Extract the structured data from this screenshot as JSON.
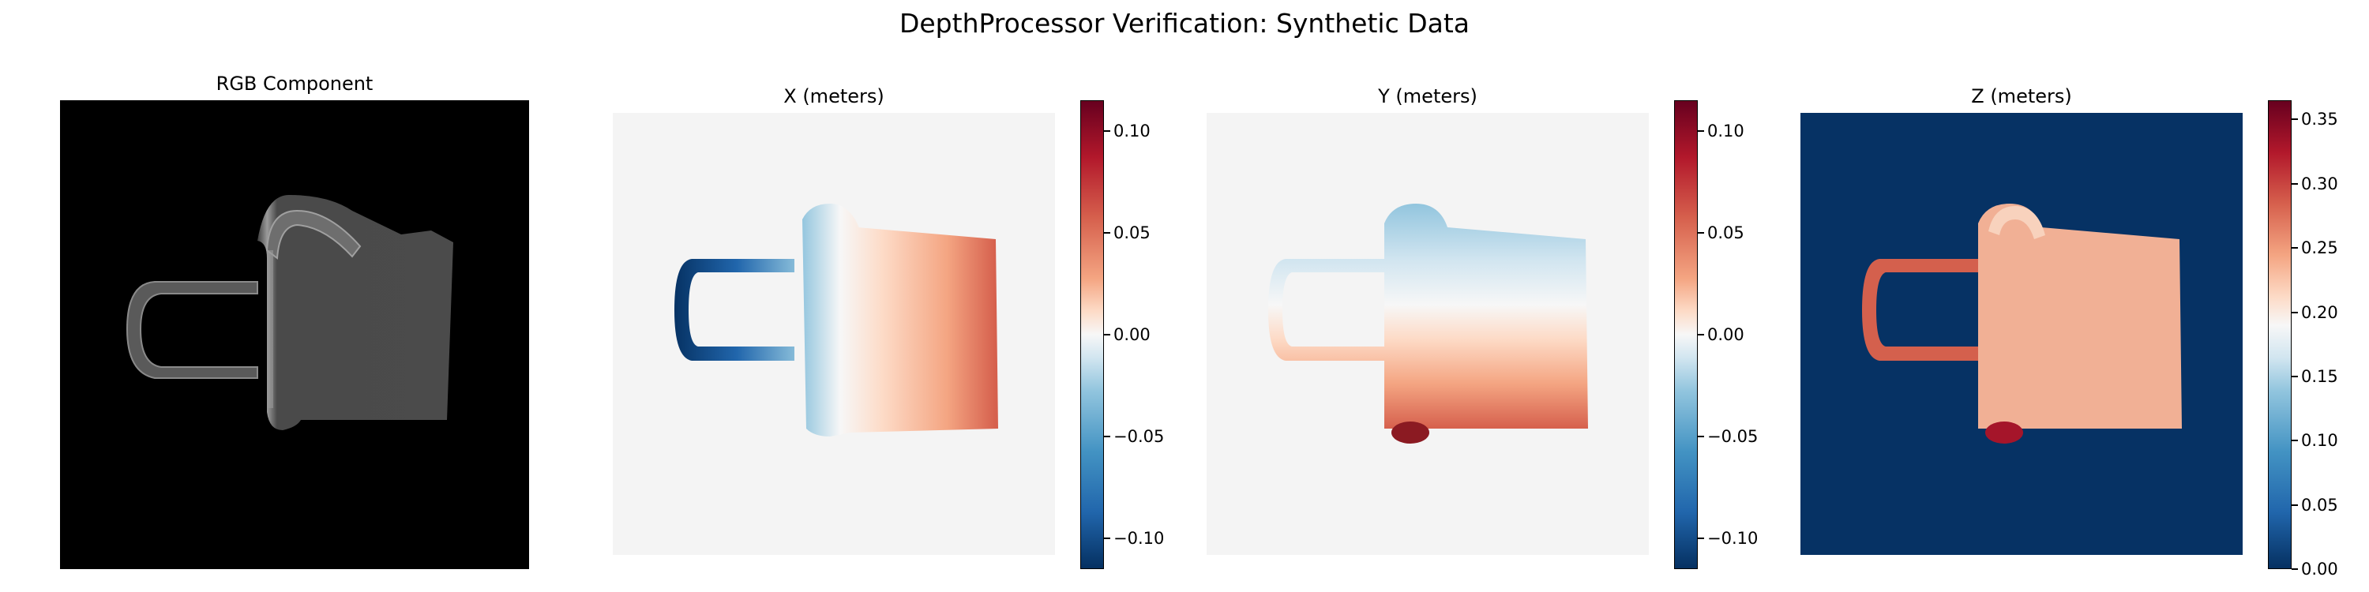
{
  "figure_title": "DepthProcessor Verification: Synthetic Data",
  "chart_data": [
    {
      "type": "image",
      "title": "RGB Component",
      "content": "grayscale render of a mug on black background"
    },
    {
      "type": "heatmap",
      "title": "X (meters)",
      "colormap": "RdBu_r",
      "vmin": -0.115,
      "vmax": 0.115,
      "colorbar_ticks": [
        0.1,
        0.05,
        0.0,
        -0.05,
        -0.1
      ],
      "colorbar_labels": [
        "0.10",
        "0.05",
        "0.00",
        "−0.05",
        "−0.10"
      ]
    },
    {
      "type": "heatmap",
      "title": "Y (meters)",
      "colormap": "RdBu_r",
      "vmin": -0.115,
      "vmax": 0.115,
      "colorbar_ticks": [
        0.1,
        0.05,
        0.0,
        -0.05,
        -0.1
      ],
      "colorbar_labels": [
        "0.10",
        "0.05",
        "0.00",
        "−0.05",
        "−0.10"
      ]
    },
    {
      "type": "heatmap",
      "title": "Z (meters)",
      "colormap": "RdBu_r",
      "vmin": 0.0,
      "vmax": 0.365,
      "colorbar_ticks": [
        0.35,
        0.3,
        0.25,
        0.2,
        0.15,
        0.1,
        0.05,
        0.0
      ],
      "colorbar_labels": [
        "0.35",
        "0.30",
        "0.25",
        "0.20",
        "0.15",
        "0.10",
        "0.05",
        "0.00"
      ]
    }
  ],
  "colors": {
    "neg_dark": "#053061",
    "neg": "#2166ac",
    "neutral": "#f4f4f4",
    "pos": "#d6604d",
    "pos_dark": "#67001f",
    "mug_gray": "#4d4d4d"
  }
}
